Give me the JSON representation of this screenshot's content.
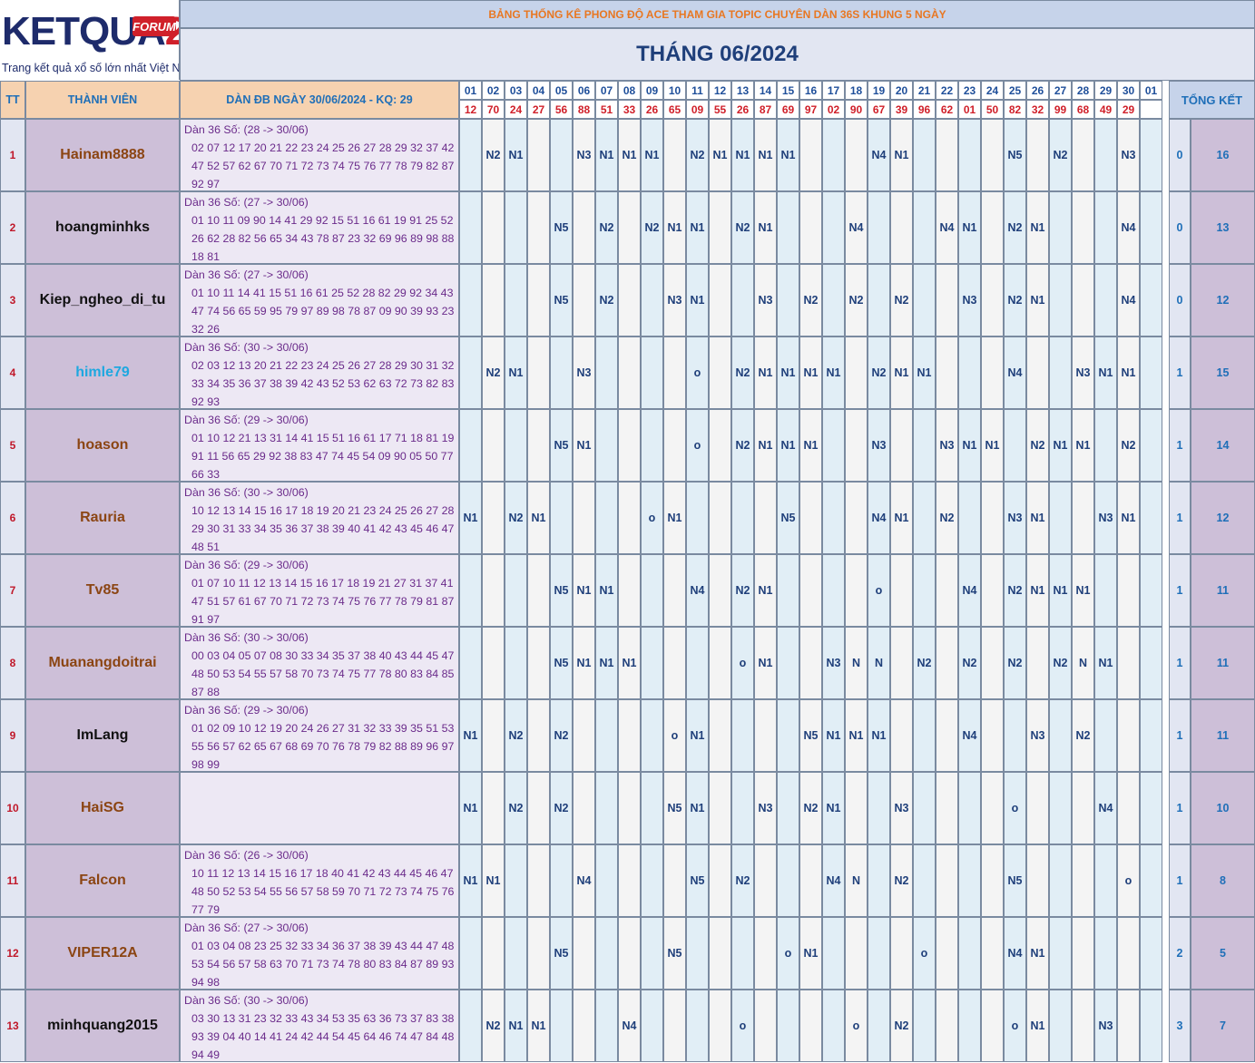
{
  "logo": {
    "brand_a": "KETQUA",
    "brand_b": "2",
    "badge": "FORUM",
    "tagline": "Trang kết quả xổ số lớn nhất Việt Nam"
  },
  "header": {
    "subtitle": "BẢNG THỐNG KÊ PHONG ĐỘ ACE THAM GIA TOPIC CHUYÊN DÀN 36S KHUNG 5 NGÀY",
    "title": "THÁNG 06/2024",
    "col_tt": "TT",
    "col_member": "THÀNH VIÊN",
    "col_dan": "DÀN ĐB NGÀY 30/06/2024 - KQ: 29",
    "col_total": "TỔNG KẾT"
  },
  "days": [
    "01",
    "02",
    "03",
    "04",
    "05",
    "06",
    "07",
    "08",
    "09",
    "10",
    "11",
    "12",
    "13",
    "14",
    "15",
    "16",
    "17",
    "18",
    "19",
    "20",
    "21",
    "22",
    "23",
    "24",
    "25",
    "26",
    "27",
    "28",
    "29",
    "30",
    "01"
  ],
  "results": [
    "12",
    "70",
    "24",
    "27",
    "56",
    "88",
    "51",
    "33",
    "26",
    "65",
    "09",
    "55",
    "26",
    "87",
    "69",
    "97",
    "02",
    "90",
    "67",
    "39",
    "96",
    "62",
    "01",
    "50",
    "82",
    "32",
    "99",
    "68",
    "49",
    "29",
    ""
  ],
  "colors": {
    "name_brown": "#8b4513",
    "name_black": "#111111",
    "name_cyan": "#1ea8e0"
  },
  "rows": [
    {
      "tt": "1",
      "name": "Hainam8888",
      "color": "brown",
      "dan": [
        "Dàn 36 Số: (28 -> 30/06)",
        "02 07 12 17 20 21 22 23 24 25 26 27 28 29 32 37 42",
        "47 52 57 62 67 70 71 72 73 74 75 76 77 78 79 82 87",
        "92 97"
      ],
      "cells": {
        "1": "N2",
        "2": "N1",
        "5": "N3",
        "6": "N1",
        "7": "N1",
        "8": "N1",
        "10": "N2",
        "11": "N1",
        "12": "N1",
        "13": "N1",
        "14": "N1",
        "18": "N4",
        "19": "N1",
        "24": "N5",
        "26": "N2",
        "29": "N3"
      },
      "t1": "0",
      "t2": "16"
    },
    {
      "tt": "2",
      "name": "hoangminhks",
      "color": "black",
      "dan": [
        "Dàn 36 Số: (27 -> 30/06)",
        "01 10 11 09 90 14 41 29 92 15 51 16 61 19 91 25 52",
        "26 62 28 82 56 65 34 43 78 87 23 32 69 96 89 98 88",
        "18 81"
      ],
      "cells": {
        "4": "N5",
        "6": "N2",
        "8": "N2",
        "9": "N1",
        "10": "N1",
        "12": "N2",
        "13": "N1",
        "17": "N4",
        "21": "N4",
        "22": "N1",
        "24": "N2",
        "25": "N1",
        "29": "N4"
      },
      "t1": "0",
      "t2": "13"
    },
    {
      "tt": "3",
      "name": "Kiep_ngheo_di_tu",
      "color": "black",
      "dan": [
        "Dàn 36 Số: (27 -> 30/06)",
        "01 10 11 14 41 15 51 16 61 25 52 28 82 29 92 34 43",
        "47 74 56 65 59 95 79 97 89 98 78 87 09 90 39 93 23",
        "32 26"
      ],
      "cells": {
        "4": "N5",
        "6": "N2",
        "9": "N3",
        "10": "N1",
        "13": "N3",
        "15": "N2",
        "17": "N2",
        "19": "N2",
        "22": "N3",
        "24": "N2",
        "25": "N1",
        "29": "N4"
      },
      "t1": "0",
      "t2": "12"
    },
    {
      "tt": "4",
      "name": "himle79",
      "color": "cyan",
      "dan": [
        "Dàn 36 Số: (30 -> 30/06)",
        "02 03 12 13 20 21 22 23 24 25 26 27 28 29 30 31 32",
        "33 34 35 36 37 38 39 42 43 52 53 62 63 72 73 82 83",
        "92 93"
      ],
      "cells": {
        "1": "N2",
        "2": "N1",
        "5": "N3",
        "10": "o",
        "12": "N2",
        "13": "N1",
        "14": "N1",
        "15": "N1",
        "16": "N1",
        "18": "N2",
        "19": "N1",
        "20": "N1",
        "24": "N4",
        "27": "N3",
        "28": "N1",
        "29": "N1"
      },
      "t1": "1",
      "t2": "15"
    },
    {
      "tt": "5",
      "name": "hoason",
      "color": "brown",
      "dan": [
        "Dàn 36 Số: (29 -> 30/06)",
        "01 10 12 21 13 31 14 41 15 51 16 61 17 71 18 81 19",
        "91 11 56 65 29 92 38 83 47 74 45 54 09 90 05 50 77",
        "66 33"
      ],
      "cells": {
        "4": "N5",
        "5": "N1",
        "10": "o",
        "12": "N2",
        "13": "N1",
        "14": "N1",
        "15": "N1",
        "18": "N3",
        "21": "N3",
        "22": "N1",
        "23": "N1",
        "25": "N2",
        "26": "N1",
        "27": "N1",
        "29": "N2"
      },
      "t1": "1",
      "t2": "14"
    },
    {
      "tt": "6",
      "name": "Rauria",
      "color": "brown",
      "dan": [
        "Dàn 36 Số: (30 -> 30/06)",
        "10 12 13 14 15 16 17 18 19 20 21 23 24 25 26 27 28",
        "29 30 31 33 34 35 36 37 38 39 40 41 42 43 45 46 47",
        "48 51"
      ],
      "cells": {
        "0": "N1",
        "2": "N2",
        "3": "N1",
        "8": "o",
        "9": "N1",
        "14": "N5",
        "18": "N4",
        "19": "N1",
        "21": "N2",
        "24": "N3",
        "25": "N1",
        "28": "N3",
        "29": "N1"
      },
      "t1": "1",
      "t2": "12"
    },
    {
      "tt": "7",
      "name": "Tv85",
      "color": "brown",
      "dan": [
        "Dàn 36 Số: (29 -> 30/06)",
        "01 07 10 11 12 13 14 15 16 17 18 19 21 27 31 37 41",
        "47 51 57 61 67 70 71 72 73 74 75 76 77 78 79 81 87",
        "91 97"
      ],
      "cells": {
        "4": "N5",
        "5": "N1",
        "6": "N1",
        "10": "N4",
        "12": "N2",
        "13": "N1",
        "18": "o",
        "22": "N4",
        "24": "N2",
        "25": "N1",
        "26": "N1",
        "27": "N1"
      },
      "t1": "1",
      "t2": "11"
    },
    {
      "tt": "8",
      "name": "Muanangdoitrai",
      "color": "brown",
      "dan": [
        "Dàn 36 Số: (30 -> 30/06)",
        "00 03 04 05 07 08 30 33 34 35 37 38 40 43 44 45 47",
        "48 50 53 54 55 57 58 70 73 74 75 77 78 80 83 84 85",
        "87 88"
      ],
      "cells": {
        "4": "N5",
        "5": "N1",
        "6": "N1",
        "7": "N1",
        "12": "o",
        "13": "N1",
        "16": "N3",
        "17": "N",
        "18": "N",
        "20": "N2",
        "22": "N2",
        "24": "N2",
        "26": "N2",
        "27": "N",
        "28": "N1"
      },
      "t1": "1",
      "t2": "11"
    },
    {
      "tt": "9",
      "name": "ImLang",
      "color": "black",
      "dan": [
        "Dàn 36 Số: (29 -> 30/06)",
        "01 02 09 10 12 19 20 24 26 27 31 32 33 39 35 51 53",
        "55 56 57 62 65 67 68 69 70 76 78 79 82 88 89 96 97",
        "98 99"
      ],
      "cells": {
        "0": "N1",
        "2": "N2",
        "4": "N2",
        "9": "o",
        "10": "N1",
        "15": "N5",
        "16": "N1",
        "17": "N1",
        "18": "N1",
        "22": "N4",
        "25": "N3",
        "27": "N2"
      },
      "t1": "1",
      "t2": "11"
    },
    {
      "tt": "10",
      "name": "HaiSG",
      "color": "brown",
      "dan": [],
      "cells": {
        "0": "N1",
        "2": "N2",
        "4": "N2",
        "9": "N5",
        "10": "N1",
        "13": "N3",
        "15": "N2",
        "16": "N1",
        "19": "N3",
        "24": "o",
        "28": "N4"
      },
      "t1": "1",
      "t2": "10"
    },
    {
      "tt": "11",
      "name": "Falcon",
      "color": "brown",
      "dan": [
        "Dàn 36 Số: (26 -> 30/06)",
        "10 11 12 13 14 15 16 17 18 40 41 42 43 44 45 46 47",
        "48 50 52 53 54 55 56 57 58 59 70 71 72 73 74 75 76",
        "77 79"
      ],
      "cells": {
        "0": "N1",
        "1": "N1",
        "5": "N4",
        "10": "N5",
        "12": "N2",
        "16": "N4",
        "17": "N",
        "19": "N2",
        "24": "N5",
        "29": "o"
      },
      "t1": "1",
      "t2": "8"
    },
    {
      "tt": "12",
      "name": "VIPER12A",
      "color": "brown",
      "dan": [
        "Dàn 36 Số: (27 -> 30/06)",
        "01 03 04 08 23 25 32 33 34 36 37 38 39 43 44 47 48",
        "53 54 56 57 58 63 70 71 73 74 78 80 83 84 87 89 93",
        "94 98"
      ],
      "cells": {
        "4": "N5",
        "9": "N5",
        "14": "o",
        "15": "N1",
        "20": "o",
        "24": "N4",
        "25": "N1"
      },
      "t1": "2",
      "t2": "5"
    },
    {
      "tt": "13",
      "name": "minhquang2015",
      "color": "black",
      "dan": [
        "Dàn 36 Số: (30 -> 30/06)",
        "03 30 13 31 23 32 33 43 34 53 35 63 36 73 37 83 38",
        "93 39 04 40 14 41 24 42 44 54 45 64 46 74 47 84 48",
        "94 49"
      ],
      "cells": {
        "1": "N2",
        "2": "N1",
        "3": "N1",
        "7": "N4",
        "12": "o",
        "17": "o",
        "19": "N2",
        "24": "o",
        "25": "N1",
        "28": "N3"
      },
      "t1": "3",
      "t2": "7"
    }
  ]
}
